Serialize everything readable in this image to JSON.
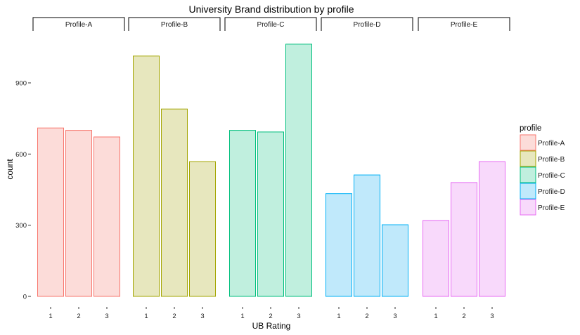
{
  "chart_data": {
    "type": "bar",
    "title": "University Brand distribution by profile",
    "xlabel": "UB Rating",
    "ylabel": "count",
    "categories": [
      "1",
      "2",
      "3"
    ],
    "facets": [
      "Profile-A",
      "Profile-B",
      "Profile-C",
      "Profile-D",
      "Profile-E"
    ],
    "series": [
      {
        "name": "Profile-A",
        "values": [
          710,
          700,
          672
        ],
        "stroke": "#F8766D",
        "fill": "#FCDCD9"
      },
      {
        "name": "Profile-B",
        "values": [
          1013,
          790,
          568
        ],
        "stroke": "#A3A500",
        "fill": "#E7E7BE"
      },
      {
        "name": "Profile-C",
        "values": [
          700,
          693,
          1063
        ],
        "stroke": "#00BF7D",
        "fill": "#C0EFDE"
      },
      {
        "name": "Profile-D",
        "values": [
          433,
          512,
          302
        ],
        "stroke": "#00B0F6",
        "fill": "#C0E9FB"
      },
      {
        "name": "Profile-E",
        "values": [
          320,
          480,
          568
        ],
        "stroke": "#E76BF3",
        "fill": "#F8D9FB"
      }
    ],
    "yticks": [
      0,
      300,
      600,
      900
    ],
    "ylim": [
      0,
      1063
    ],
    "grid": false,
    "legend": {
      "title": "profile",
      "position": "right"
    }
  }
}
